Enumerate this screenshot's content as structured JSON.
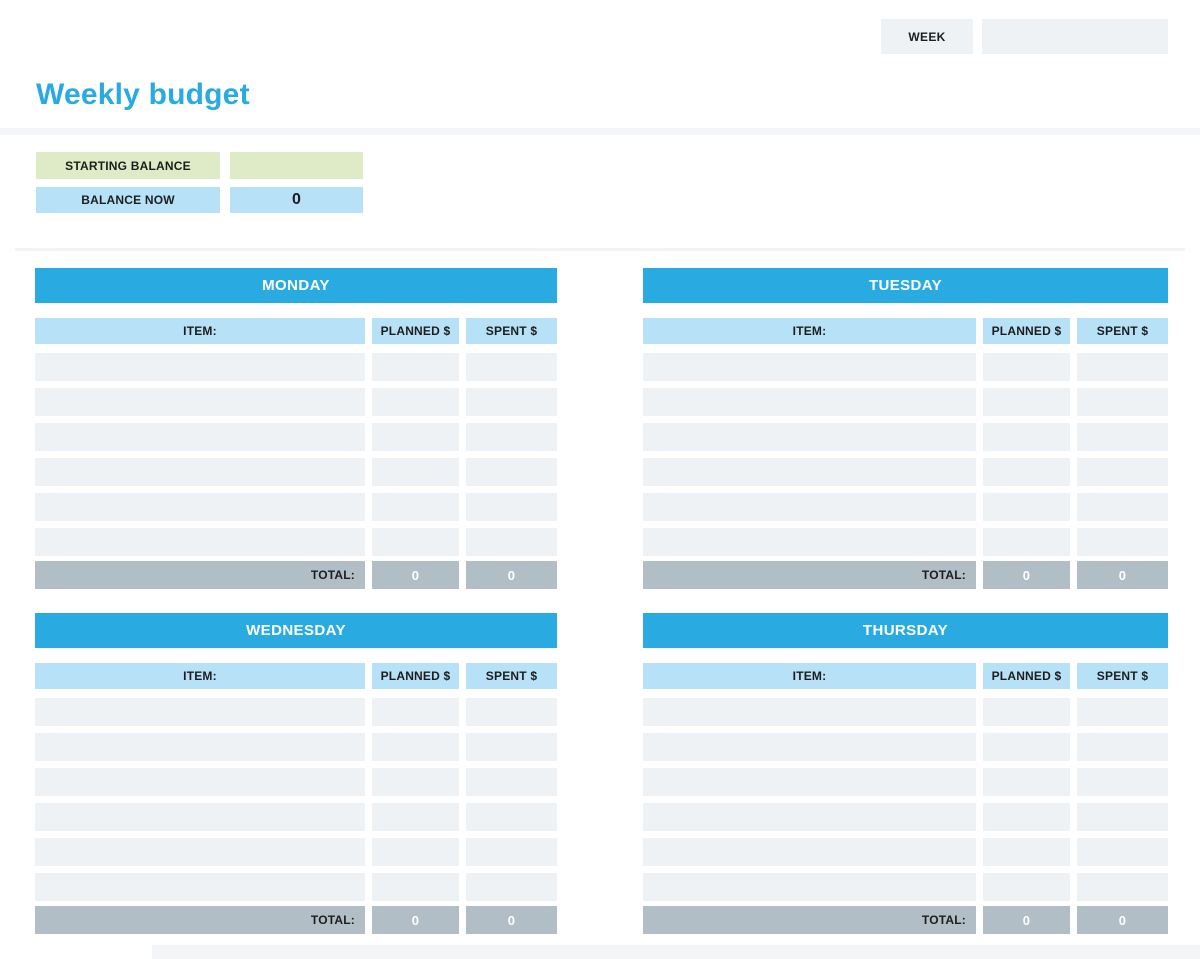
{
  "header": {
    "week_label": "WEEK",
    "week_value": "",
    "title": "Weekly budget"
  },
  "balance": {
    "starting_label": "STARTING BALANCE",
    "starting_value": "",
    "now_label": "BALANCE NOW",
    "now_value": "0"
  },
  "table_columns": {
    "item": "ITEM:",
    "planned": "PLANNED $",
    "spent": "SPENT $"
  },
  "total_label": "TOTAL:",
  "days": [
    {
      "name": "MONDAY",
      "rows": [
        [
          "",
          "",
          ""
        ],
        [
          "",
          "",
          ""
        ],
        [
          "",
          "",
          ""
        ],
        [
          "",
          "",
          ""
        ],
        [
          "",
          "",
          ""
        ],
        [
          "",
          "",
          ""
        ]
      ],
      "total_planned": "0",
      "total_spent": "0"
    },
    {
      "name": "TUESDAY",
      "rows": [
        [
          "",
          "",
          ""
        ],
        [
          "",
          "",
          ""
        ],
        [
          "",
          "",
          ""
        ],
        [
          "",
          "",
          ""
        ],
        [
          "",
          "",
          ""
        ],
        [
          "",
          "",
          ""
        ]
      ],
      "total_planned": "0",
      "total_spent": "0"
    },
    {
      "name": "WEDNESDAY",
      "rows": [
        [
          "",
          "",
          ""
        ],
        [
          "",
          "",
          ""
        ],
        [
          "",
          "",
          ""
        ],
        [
          "",
          "",
          ""
        ],
        [
          "",
          "",
          ""
        ],
        [
          "",
          "",
          ""
        ]
      ],
      "total_planned": "0",
      "total_spent": "0"
    },
    {
      "name": "THURSDAY",
      "rows": [
        [
          "",
          "",
          ""
        ],
        [
          "",
          "",
          ""
        ],
        [
          "",
          "",
          ""
        ],
        [
          "",
          "",
          ""
        ],
        [
          "",
          "",
          ""
        ],
        [
          "",
          "",
          ""
        ]
      ],
      "total_planned": "0",
      "total_spent": "0"
    }
  ],
  "colors": {
    "accent_blue": "#29abe2",
    "light_blue": "#b7e1f7",
    "pale_green": "#dfeac6",
    "row_fill": "#eef2f4",
    "total_gray": "#b1bec5",
    "box_gray": "#eef2f5",
    "text_dark": "#1d1d1d"
  }
}
